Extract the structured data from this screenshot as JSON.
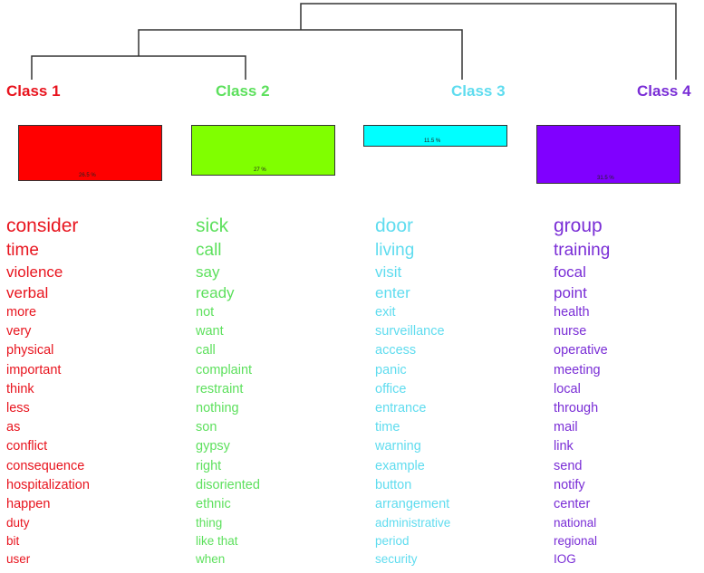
{
  "classes": [
    {
      "name": "Class 1",
      "color": "#ff0000",
      "percent_label": "26.5 %",
      "percent": 26.5,
      "words": [
        "consider",
        "time",
        "violence",
        "verbal",
        "more",
        "very",
        "physical",
        "important",
        "think",
        "less",
        "as",
        "conflict",
        "consequence",
        "hospitalization",
        "happen",
        "duty",
        "bit",
        "user"
      ]
    },
    {
      "name": "Class 2",
      "color": "#80ff00",
      "percent_label": "27 %",
      "percent": 27,
      "words": [
        "sick",
        "call",
        "say",
        "ready",
        "not",
        "want",
        "call",
        "complaint",
        "restraint",
        "nothing",
        "son",
        "gypsy",
        "right",
        "disoriented",
        "ethnic",
        "thing",
        "like that",
        "when"
      ]
    },
    {
      "name": "Class 3",
      "color": "#00ffff",
      "percent_label": "11.5 %",
      "percent": 11.5,
      "words": [
        "door",
        "living",
        "visit",
        "enter",
        "exit",
        "surveillance",
        "access",
        "panic",
        "office",
        "entrance",
        "time",
        "warning",
        "example",
        "button",
        "arrangement",
        "administrative",
        "period",
        "security"
      ]
    },
    {
      "name": "Class 4",
      "color": "#8000ff",
      "percent_label": "31.5 %",
      "percent": 31.5,
      "words": [
        "group",
        "training",
        "focal",
        "point",
        "health",
        "nurse",
        "operative",
        "meeting",
        "local",
        "through",
        "mail",
        "link",
        "send",
        "notify",
        "center",
        "national",
        "regional",
        "IOG"
      ]
    }
  ],
  "text_colors": [
    "#e8141e",
    "#5de05d",
    "#5fdcef",
    "#7a2ed6"
  ]
}
